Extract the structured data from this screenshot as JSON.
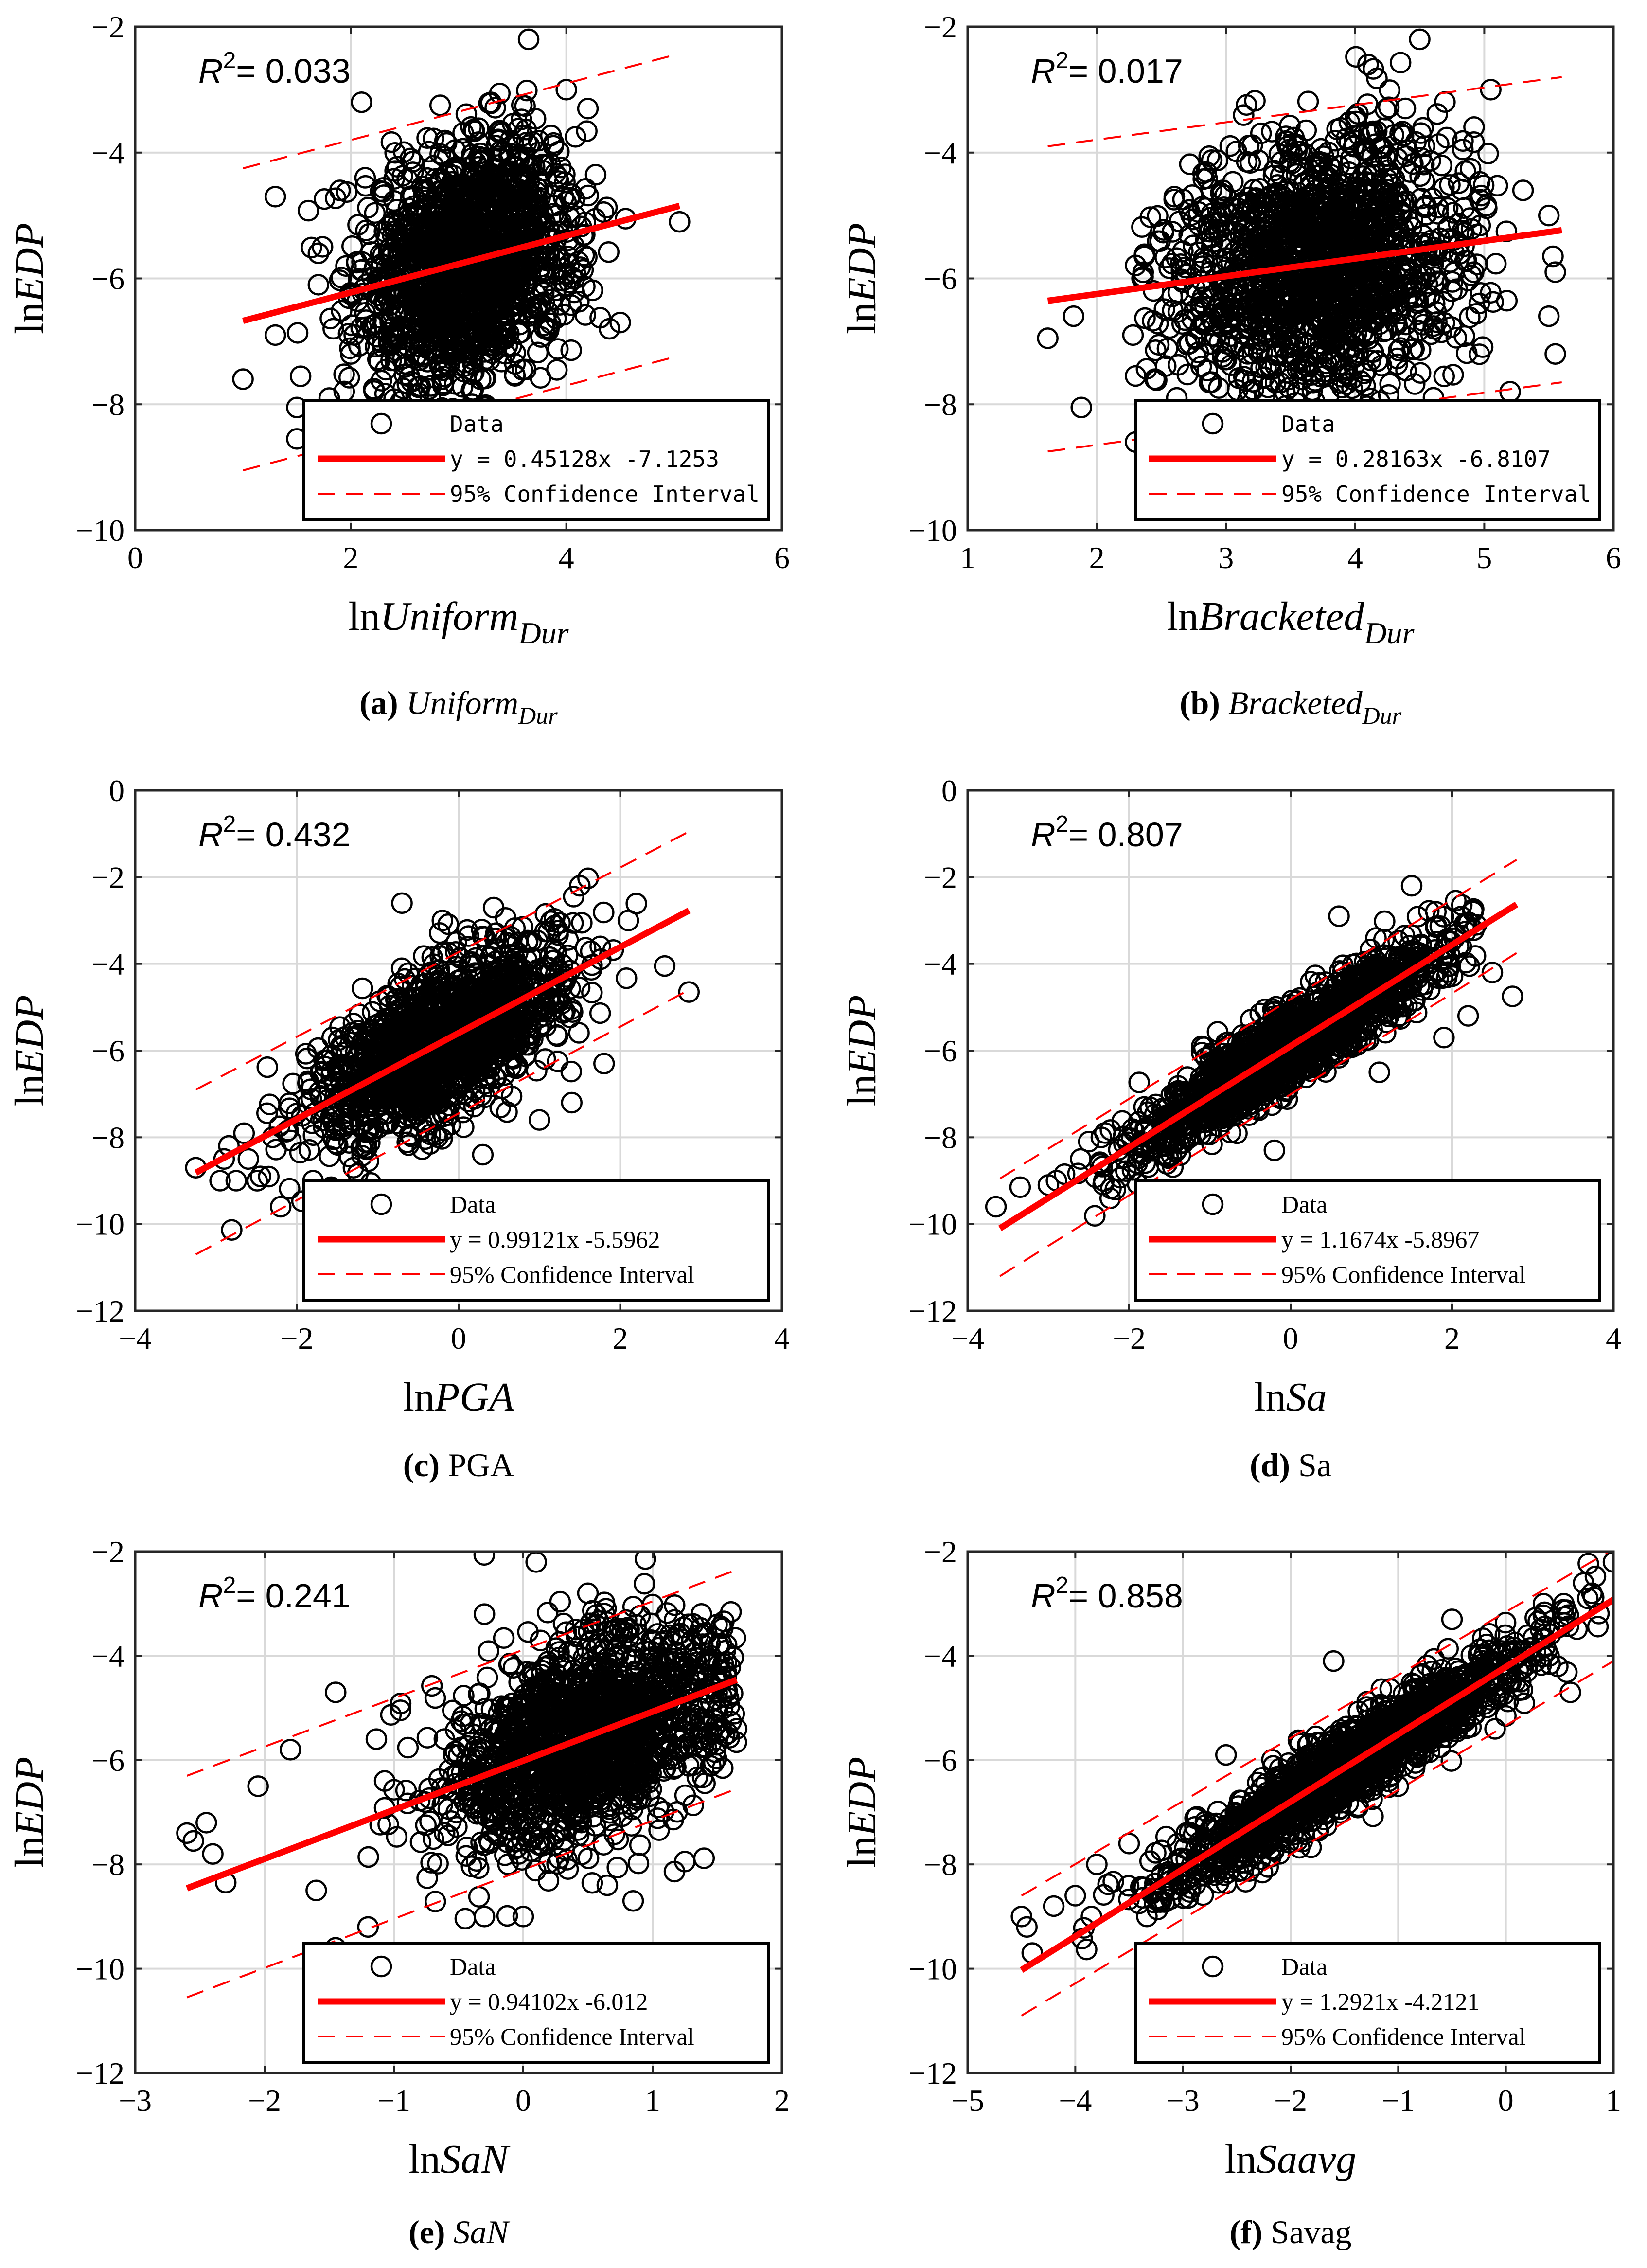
{
  "figure": {
    "colors": {
      "data_marker": "#000000",
      "fit_line": "#ff0000",
      "ci_line": "#ff0000",
      "grid": "#d9d9d9",
      "axis": "#262626"
    }
  },
  "chart_data": [
    {
      "panel": "a",
      "type": "scatter",
      "caption_label": "(a)",
      "caption_text": "Uniform",
      "caption_sub": "Dur",
      "caption_italic": true,
      "xlabel": {
        "prefix": "ln",
        "var": "Uniform",
        "sub": "Dur"
      },
      "ylabel": {
        "prefix": "ln",
        "var": "EDP"
      },
      "xlim": [
        0,
        6
      ],
      "ylim": [
        -10,
        -2
      ],
      "xticks": [
        0,
        2,
        4,
        6
      ],
      "yticks": [
        -10,
        -8,
        -6,
        -4,
        -2
      ],
      "xtick_labels": [
        "0",
        "2",
        "4",
        "6"
      ],
      "ytick_labels": [
        "−10",
        "−8",
        "−6",
        "−4",
        "−2"
      ],
      "grid": true,
      "r2_label": "R",
      "r2_sup": "2",
      "r2_value": "= 0.033",
      "legend": {
        "data": "Data",
        "fit": "y = 0.45128x -7.1253",
        "ci": "95% Confidence Interval",
        "position": "bottom-right"
      },
      "fit": {
        "slope": 0.45128,
        "intercept": -7.1253,
        "x_range": [
          1.0,
          5.05
        ]
      },
      "ci_upper": [
        [
          1.0,
          -4.25
        ],
        [
          5.0,
          -2.45
        ]
      ],
      "ci_lower": [
        [
          1.0,
          -9.05
        ],
        [
          5.0,
          -7.25
        ]
      ],
      "cloud": {
        "n": 1500,
        "x_mean": 3.1,
        "x_sd": 0.5,
        "resid_sd": 0.95,
        "x_min": 1.0,
        "x_max": 5.05
      },
      "points": [
        [
          1.0,
          -7.6
        ],
        [
          1.3,
          -4.7
        ],
        [
          1.3,
          -6.9
        ],
        [
          1.5,
          -8.05
        ],
        [
          1.5,
          -8.55
        ],
        [
          1.7,
          -6.1
        ],
        [
          1.8,
          -7.9
        ],
        [
          1.7,
          -5.6
        ],
        [
          3.65,
          -2.2
        ],
        [
          5.05,
          -5.1
        ],
        [
          4.5,
          -6.7
        ],
        [
          4.55,
          -5.05
        ],
        [
          4.2,
          -3.3
        ],
        [
          2.1,
          -3.2
        ],
        [
          3.8,
          -8.3
        ],
        [
          2.4,
          -8.4
        ],
        [
          2.0,
          -7.2
        ],
        [
          1.9,
          -4.6
        ],
        [
          4.4,
          -6.8
        ],
        [
          4.0,
          -3.0
        ]
      ]
    },
    {
      "panel": "b",
      "type": "scatter",
      "caption_label": "(b)",
      "caption_text": "Bracketed",
      "caption_sub": "Dur",
      "caption_italic": true,
      "xlabel": {
        "prefix": "ln",
        "var": "Bracketed",
        "sub": "Dur"
      },
      "ylabel": {
        "prefix": "ln",
        "var": "EDP"
      },
      "xlim": [
        1,
        6
      ],
      "ylim": [
        -10,
        -2
      ],
      "xticks": [
        1,
        2,
        3,
        4,
        5,
        6
      ],
      "yticks": [
        -10,
        -8,
        -6,
        -4,
        -2
      ],
      "xtick_labels": [
        "1",
        "2",
        "3",
        "4",
        "5",
        "6"
      ],
      "ytick_labels": [
        "−10",
        "−8",
        "−6",
        "−4",
        "−2"
      ],
      "grid": true,
      "r2_label": "R",
      "r2_sup": "2",
      "r2_value": "= 0.017",
      "legend": {
        "data": "Data",
        "fit": "y = 0.28163x -6.8107",
        "ci": "95% Confidence Interval",
        "position": "bottom-right"
      },
      "fit": {
        "slope": 0.28163,
        "intercept": -6.8107,
        "x_range": [
          1.62,
          5.6
        ]
      },
      "ci_upper": [
        [
          1.62,
          -3.9
        ],
        [
          5.6,
          -2.8
        ]
      ],
      "ci_lower": [
        [
          1.62,
          -8.75
        ],
        [
          5.6,
          -7.65
        ]
      ],
      "cloud": {
        "n": 1500,
        "x_mean": 3.75,
        "x_sd": 0.55,
        "resid_sd": 1.0,
        "x_min": 2.3,
        "x_max": 5.6
      },
      "points": [
        [
          1.62,
          -6.95
        ],
        [
          1.82,
          -6.6
        ],
        [
          1.88,
          -8.05
        ],
        [
          2.3,
          -8.6
        ],
        [
          2.28,
          -6.9
        ],
        [
          2.3,
          -7.55
        ],
        [
          2.35,
          -6.0
        ],
        [
          2.45,
          -7.6
        ],
        [
          4.5,
          -2.2
        ],
        [
          5.05,
          -3.0
        ],
        [
          4.1,
          -2.6
        ],
        [
          5.55,
          -5.9
        ],
        [
          5.5,
          -6.6
        ],
        [
          5.55,
          -7.2
        ],
        [
          5.5,
          -5.0
        ],
        [
          5.2,
          -7.8
        ],
        [
          5.3,
          -4.6
        ],
        [
          4.2,
          -8.4
        ],
        [
          3.0,
          -8.4
        ],
        [
          2.6,
          -4.7
        ]
      ]
    },
    {
      "panel": "c",
      "type": "scatter",
      "caption_label": "(c)",
      "caption_text": "PGA",
      "caption_sub": "",
      "caption_italic": false,
      "xlabel": {
        "prefix": "ln",
        "var": "PGA",
        "sub": ""
      },
      "ylabel": {
        "prefix": "ln",
        "var": "EDP"
      },
      "xlim": [
        -4,
        4
      ],
      "ylim": [
        -12,
        0
      ],
      "xticks": [
        -4,
        -2,
        0,
        2,
        4
      ],
      "yticks": [
        -12,
        -10,
        -8,
        -6,
        -4,
        -2,
        0
      ],
      "xtick_labels": [
        "−4",
        "−2",
        "0",
        "2",
        "4"
      ],
      "ytick_labels": [
        "−12",
        "−10",
        "−8",
        "−6",
        "−4",
        "−2",
        "0"
      ],
      "grid": true,
      "r2_label": "R",
      "r2_sup": "2",
      "r2_value": "= 0.432",
      "legend": {
        "data": "Data",
        "fit": "y = 0.99121x -5.5962",
        "ci": "95% Confidence Interval",
        "position": "bottom-right"
      },
      "fit": {
        "slope": 0.99121,
        "intercept": -5.5962,
        "x_range": [
          -3.25,
          2.85
        ]
      },
      "ci_upper": [
        [
          -3.25,
          -6.9
        ],
        [
          2.85,
          -0.95
        ]
      ],
      "ci_lower": [
        [
          -3.25,
          -10.7
        ],
        [
          2.85,
          -4.6
        ]
      ],
      "cloud": {
        "n": 1500,
        "x_mean": -0.2,
        "x_sd": 0.75,
        "resid_sd": 0.85,
        "x_min": -3.25,
        "x_max": 2.2
      },
      "points": [
        [
          -3.25,
          -8.7
        ],
        [
          -2.9,
          -8.5
        ],
        [
          -2.75,
          -9.0
        ],
        [
          -2.95,
          -9.0
        ],
        [
          -2.2,
          -9.6
        ],
        [
          -2.3,
          -8.0
        ],
        [
          2.55,
          -4.05
        ],
        [
          2.85,
          -4.65
        ],
        [
          1.5,
          -2.2
        ],
        [
          1.4,
          -7.2
        ],
        [
          0.3,
          -8.4
        ],
        [
          -0.7,
          -2.6
        ],
        [
          2.1,
          -3.0
        ],
        [
          -1.8,
          -9.0
        ],
        [
          -2.45,
          -8.9
        ],
        [
          -2.6,
          -8.5
        ],
        [
          1.8,
          -6.3
        ],
        [
          1.0,
          -7.6
        ],
        [
          -0.2,
          -3.0
        ],
        [
          -1.3,
          -8.7
        ]
      ]
    },
    {
      "panel": "d",
      "type": "scatter",
      "caption_label": "(d)",
      "caption_text": "Sa",
      "caption_sub": "",
      "caption_italic": false,
      "xlabel": {
        "prefix": "ln",
        "var": "Sa",
        "sub": ""
      },
      "ylabel": {
        "prefix": "ln",
        "var": "EDP"
      },
      "xlim": [
        -4,
        4
      ],
      "ylim": [
        -12,
        0
      ],
      "xticks": [
        -4,
        -2,
        0,
        2,
        4
      ],
      "yticks": [
        -12,
        -10,
        -8,
        -6,
        -4,
        -2,
        0
      ],
      "xtick_labels": [
        "−4",
        "−2",
        "0",
        "2",
        "4"
      ],
      "ytick_labels": [
        "−12",
        "−10",
        "−8",
        "−6",
        "−4",
        "−2",
        "0"
      ],
      "grid": true,
      "r2_label": "R",
      "r2_sup": "2",
      "r2_value": "= 0.807",
      "legend": {
        "data": "Data",
        "fit": "y = 1.1674x -5.8967",
        "ci": "95% Confidence Interval",
        "position": "bottom-right"
      },
      "fit": {
        "slope": 1.1674,
        "intercept": -5.8967,
        "x_range": [
          -3.6,
          2.8
        ]
      },
      "ci_upper": [
        [
          -3.6,
          -8.95
        ],
        [
          2.8,
          -1.6
        ]
      ],
      "ci_lower": [
        [
          -3.6,
          -11.2
        ],
        [
          2.8,
          -3.75
        ]
      ],
      "cloud": {
        "n": 1500,
        "x_mean": 0.0,
        "x_sd": 0.9,
        "resid_sd": 0.45,
        "x_min": -3.2,
        "x_max": 2.3
      },
      "points": [
        [
          -3.65,
          -9.6
        ],
        [
          -3.35,
          -9.15
        ],
        [
          -2.9,
          -9.0
        ],
        [
          -2.8,
          -8.85
        ],
        [
          -2.6,
          -8.5
        ],
        [
          2.5,
          -4.2
        ],
        [
          2.75,
          -4.75
        ],
        [
          1.5,
          -2.2
        ],
        [
          2.2,
          -5.2
        ],
        [
          1.8,
          -2.8
        ],
        [
          -1.1,
          -5.9
        ],
        [
          -0.2,
          -8.3
        ],
        [
          -3.0,
          -9.1
        ],
        [
          2.3,
          -3.1
        ],
        [
          1.1,
          -6.5
        ],
        [
          0.6,
          -2.9
        ],
        [
          -1.9,
          -8.6
        ],
        [
          1.9,
          -5.7
        ],
        [
          -2.3,
          -7.9
        ],
        [
          -2.5,
          -8.1
        ]
      ]
    },
    {
      "panel": "e",
      "type": "scatter",
      "caption_label": "(e)",
      "caption_text": "SaN",
      "caption_sub": "",
      "caption_italic": true,
      "xlabel": {
        "prefix": "ln",
        "var": "SaN",
        "sub": ""
      },
      "ylabel": {
        "prefix": "ln",
        "var": "EDP"
      },
      "xlim": [
        -3,
        2
      ],
      "ylim": [
        -12,
        -2
      ],
      "xticks": [
        -3,
        -2,
        -1,
        0,
        1,
        2
      ],
      "yticks": [
        -12,
        -10,
        -8,
        -6,
        -4,
        -2
      ],
      "xtick_labels": [
        "−3",
        "−2",
        "−1",
        "0",
        "1",
        "2"
      ],
      "ytick_labels": [
        "−12",
        "−10",
        "−8",
        "−6",
        "−4",
        "−2"
      ],
      "grid": true,
      "r2_label": "R",
      "r2_sup": "2",
      "r2_value": "= 0.241",
      "legend": {
        "data": "Data",
        "fit": "y = 0.94102x -6.012",
        "ci": "95% Confidence Interval",
        "position": "bottom-right"
      },
      "fit": {
        "slope": 0.94102,
        "intercept": -6.012,
        "x_range": [
          -2.6,
          1.65
        ]
      },
      "ci_upper": [
        [
          -2.6,
          -6.3
        ],
        [
          1.65,
          -2.35
        ]
      ],
      "ci_lower": [
        [
          -2.6,
          -10.55
        ],
        [
          1.65,
          -6.55
        ]
      ],
      "cloud": {
        "n": 1500,
        "x_mean": 0.45,
        "x_sd": 0.55,
        "resid_sd": 0.95,
        "x_min": -2.3,
        "x_max": 1.65
      },
      "points": [
        [
          -2.6,
          -7.4
        ],
        [
          -2.55,
          -7.55
        ],
        [
          -2.45,
          -7.2
        ],
        [
          -2.3,
          -8.35
        ],
        [
          -2.4,
          -7.8
        ],
        [
          -1.45,
          -4.7
        ],
        [
          -1.45,
          -9.6
        ],
        [
          -1.2,
          -9.2
        ],
        [
          0.1,
          -2.2
        ],
        [
          1.65,
          -5.4
        ],
        [
          0.65,
          -8.4
        ],
        [
          0.85,
          -8.7
        ],
        [
          0.0,
          -9.0
        ],
        [
          -0.3,
          -9.0
        ],
        [
          -1.8,
          -5.8
        ],
        [
          -2.05,
          -6.5
        ],
        [
          1.45,
          -4.0
        ],
        [
          -0.3,
          -3.2
        ],
        [
          0.5,
          -2.8
        ],
        [
          -1.6,
          -8.5
        ]
      ]
    },
    {
      "panel": "f",
      "type": "scatter",
      "caption_label": "(f)",
      "caption_text": "Savag",
      "caption_sub": "",
      "caption_italic": false,
      "xlabel": {
        "prefix": "ln",
        "var": "Saavg",
        "sub": ""
      },
      "ylabel": {
        "prefix": "ln",
        "var": "EDP"
      },
      "xlim": [
        -5,
        1
      ],
      "ylim": [
        -12,
        -2
      ],
      "xticks": [
        -5,
        -4,
        -3,
        -2,
        -1,
        0,
        1
      ],
      "yticks": [
        -12,
        -10,
        -8,
        -6,
        -4,
        -2
      ],
      "xtick_labels": [
        "−5",
        "−4",
        "−3",
        "−2",
        "−1",
        "0",
        "1"
      ],
      "ytick_labels": [
        "−12",
        "−10",
        "−8",
        "−6",
        "−4",
        "−2"
      ],
      "grid": true,
      "r2_label": "R",
      "r2_sup": "2",
      "r2_value": "= 0.858",
      "legend": {
        "data": "Data",
        "fit": "y = 1.2921x -4.2121",
        "ci": "95% Confidence Interval",
        "position": "bottom-right"
      },
      "fit": {
        "slope": 1.2921,
        "intercept": -4.2121,
        "x_range": [
          -4.5,
          1.0
        ]
      },
      "ci_upper": [
        [
          -4.5,
          -8.6
        ],
        [
          1.0,
          -1.95
        ]
      ],
      "ci_lower": [
        [
          -4.5,
          -10.9
        ],
        [
          1.0,
          -4.1
        ]
      ],
      "cloud": {
        "n": 1500,
        "x_mean": -1.5,
        "x_sd": 0.85,
        "resid_sd": 0.38,
        "x_min": -4.0,
        "x_max": 0.9
      },
      "points": [
        [
          -4.5,
          -9.0
        ],
        [
          -4.45,
          -9.2
        ],
        [
          -4.4,
          -9.7
        ],
        [
          -4.2,
          -8.8
        ],
        [
          -4.0,
          -8.6
        ],
        [
          1.0,
          -2.2
        ],
        [
          0.6,
          -4.7
        ],
        [
          -0.1,
          -5.4
        ],
        [
          -3.5,
          -7.6
        ],
        [
          -3.8,
          -8.0
        ],
        [
          0.8,
          -2.8
        ],
        [
          -2.6,
          -5.9
        ],
        [
          -1.0,
          -6.5
        ],
        [
          -1.3,
          -6.1
        ],
        [
          0.35,
          -3.0
        ],
        [
          -3.2,
          -8.7
        ],
        [
          -0.5,
          -3.3
        ],
        [
          -3.85,
          -9.0
        ],
        [
          -2.1,
          -7.4
        ],
        [
          -1.6,
          -4.1
        ]
      ]
    }
  ]
}
